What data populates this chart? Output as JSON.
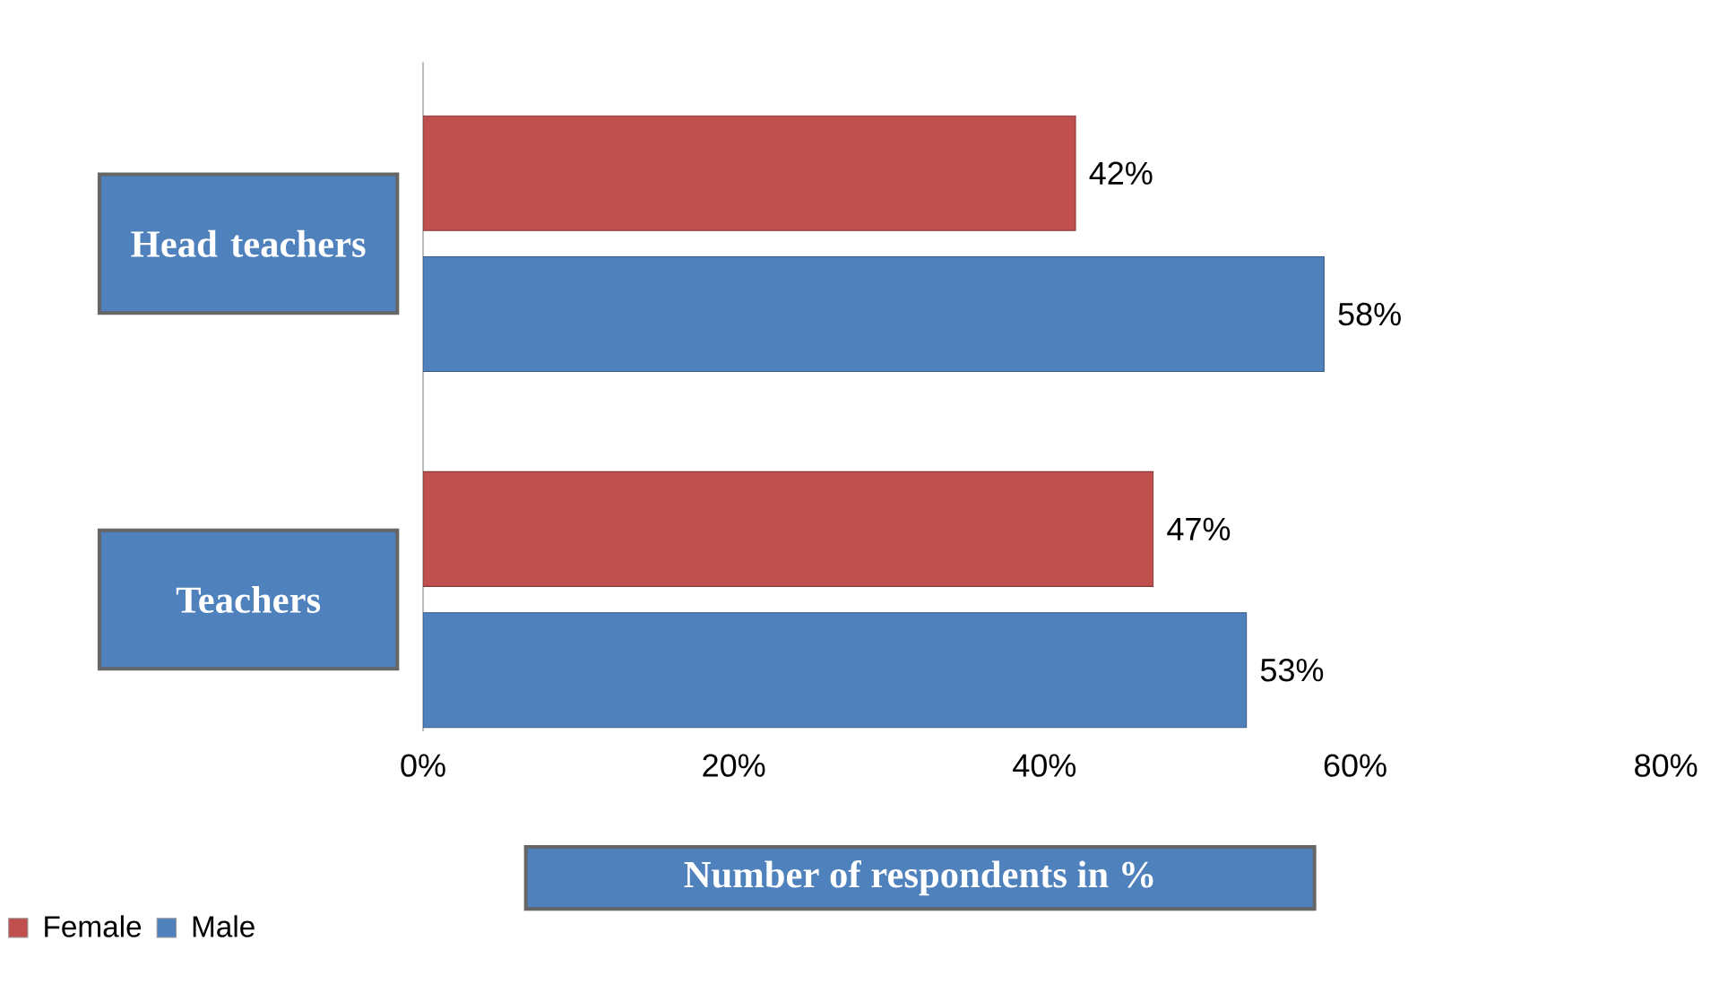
{
  "chart_data": {
    "type": "bar",
    "orientation": "horizontal",
    "xlabel": "Number  of respondents in %",
    "categories": [
      "Head teachers",
      "Teachers"
    ],
    "series": [
      {
        "name": "Female",
        "color": "#c0504d",
        "values": [
          42,
          47
        ],
        "value_labels": [
          "42%",
          "47%"
        ]
      },
      {
        "name": "Male",
        "color": "#4f81bd",
        "values": [
          58,
          53
        ],
        "value_labels": [
          "58%",
          "53%"
        ]
      }
    ],
    "xlim": [
      0,
      80
    ],
    "xticks": [
      {
        "value": 0,
        "label": "0%"
      },
      {
        "value": 20,
        "label": "20%"
      },
      {
        "value": 40,
        "label": "40%"
      },
      {
        "value": 60,
        "label": "60%"
      },
      {
        "value": 80,
        "label": "80%"
      }
    ],
    "grid": false,
    "legend": "bottom left"
  }
}
